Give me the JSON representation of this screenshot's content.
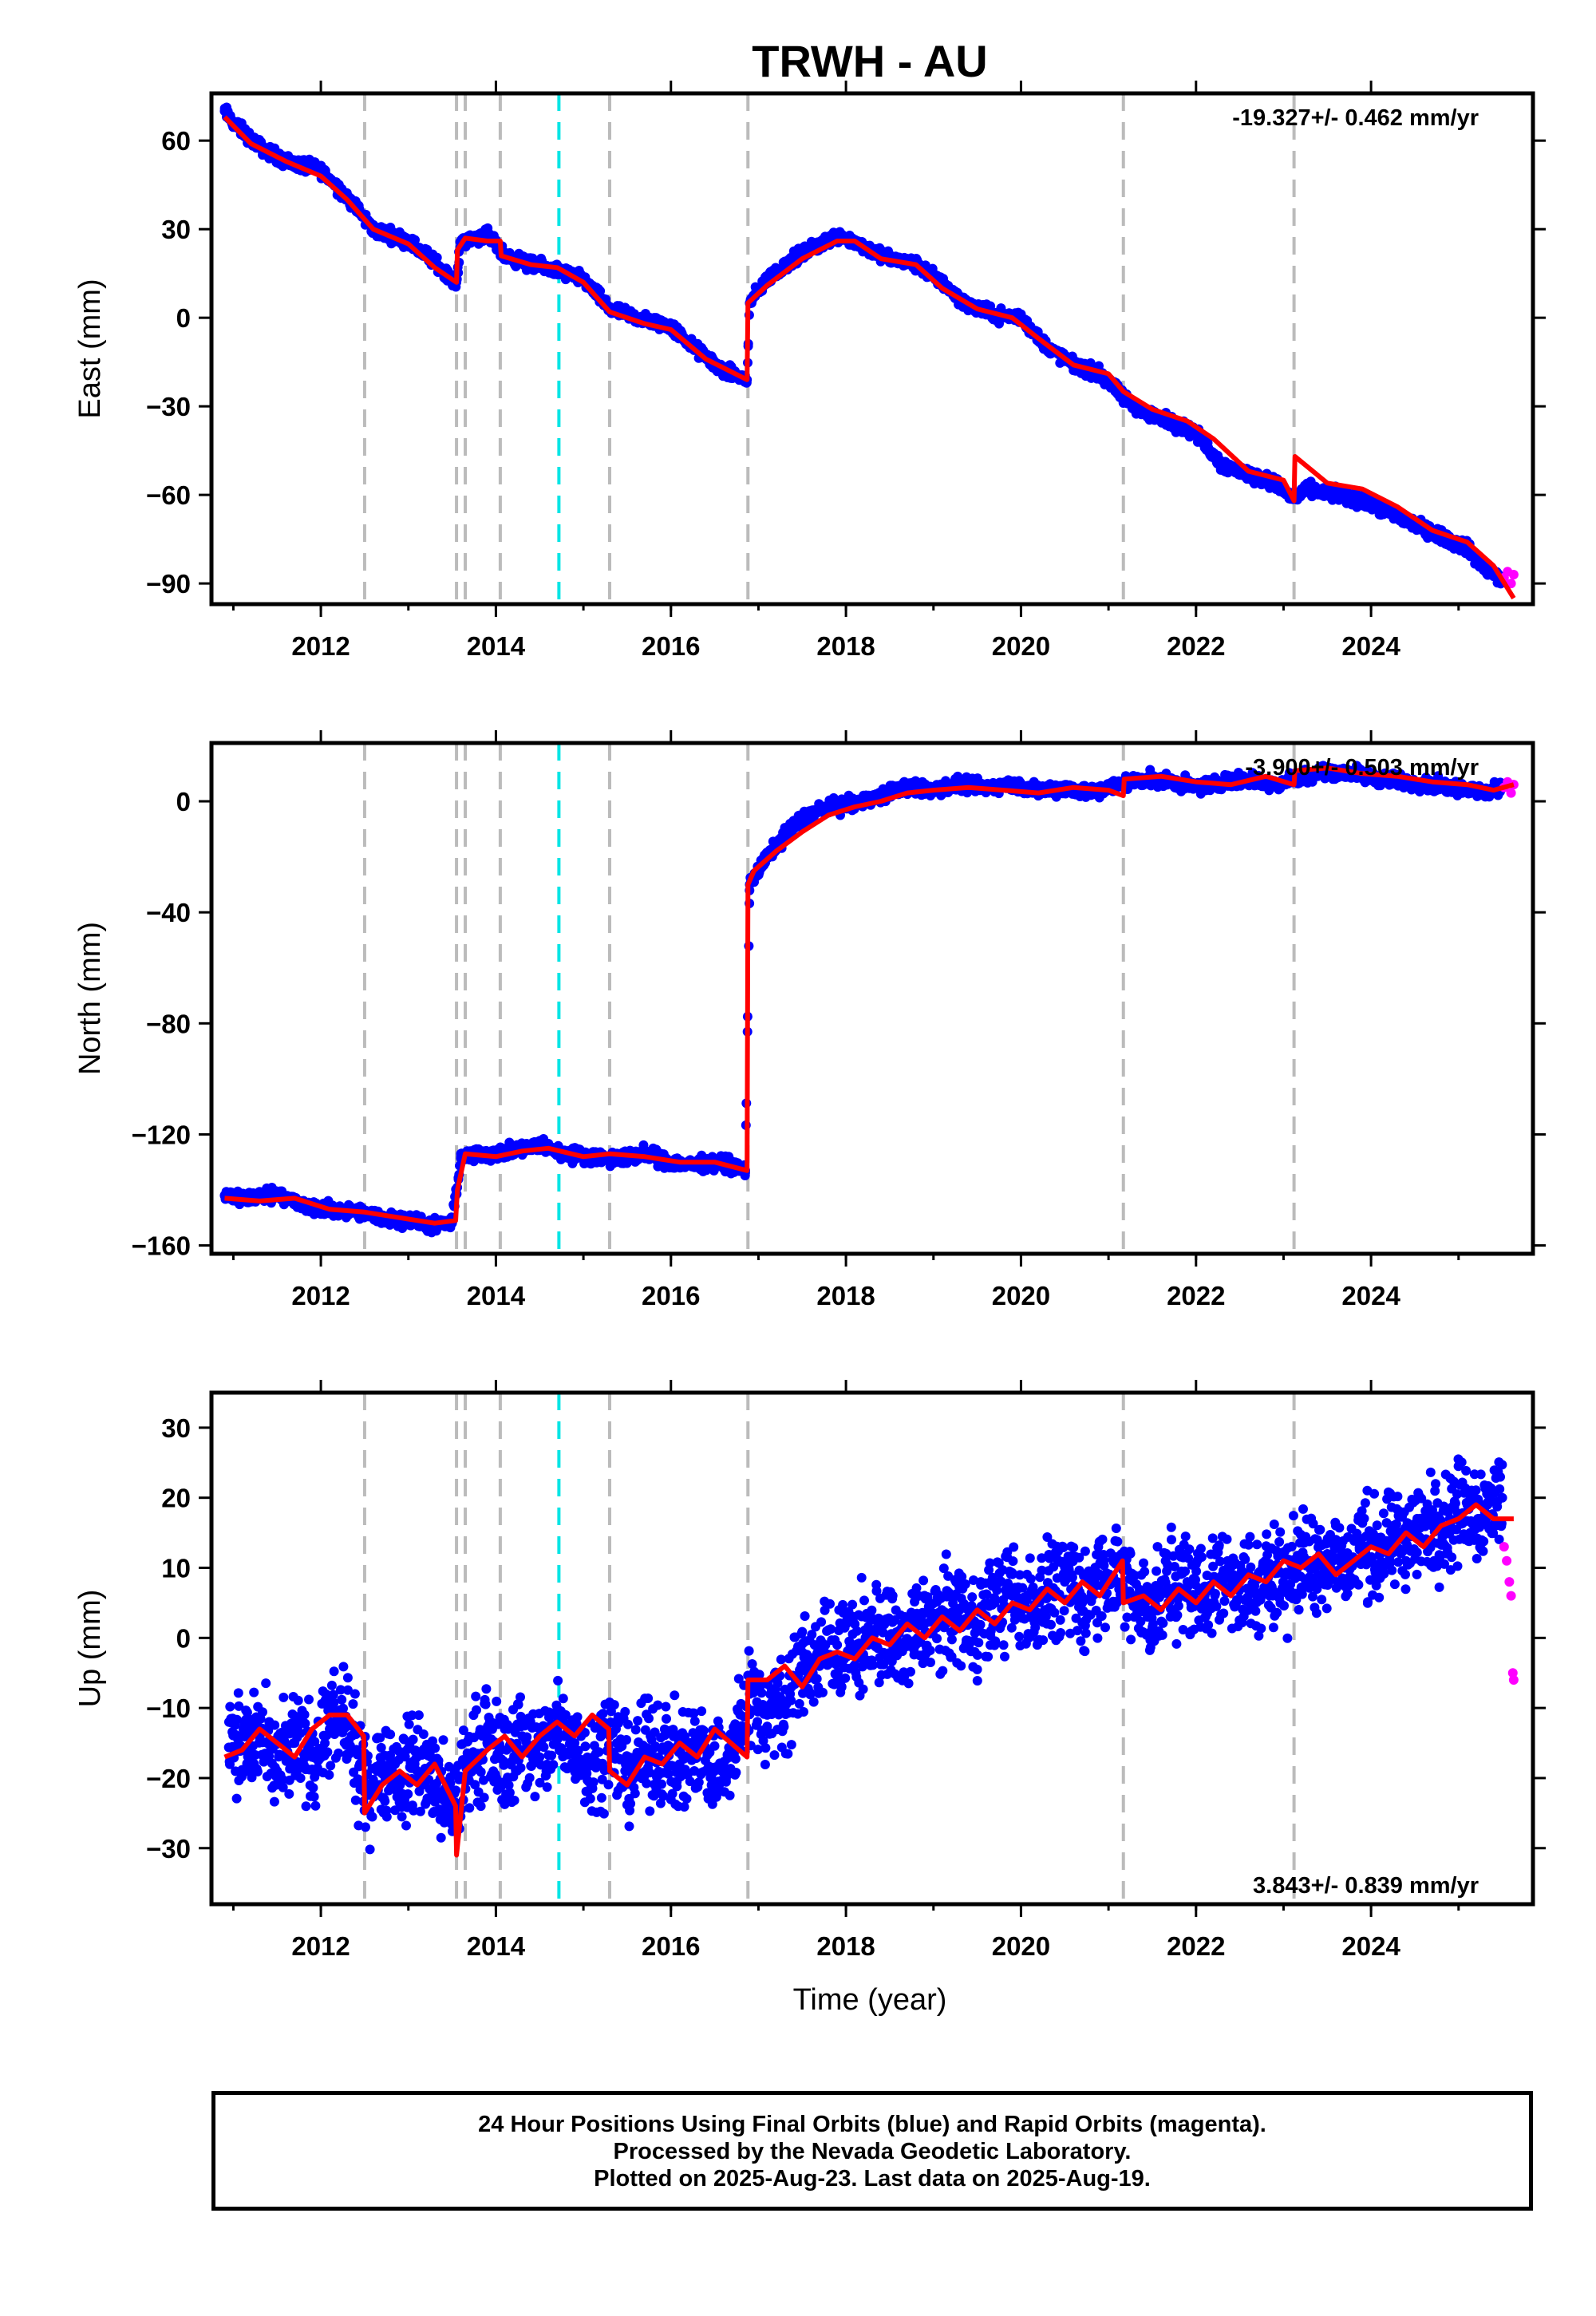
{
  "title": "TRWH - AU",
  "xlabel": "Time (year)",
  "footer": {
    "line1": "24 Hour Positions Using Final Orbits (blue) and Rapid Orbits (magenta).",
    "line2": "Processed by the Nevada Geodetic Laboratory.",
    "line3": "Plotted on 2025-Aug-23. Last data on 2025-Aug-19."
  },
  "colors": {
    "final_orbits": "#0000ff",
    "rapid_orbits": "#ff00ff",
    "model": "#ff0000",
    "event_line": "#bbbbbb",
    "highlight_event_line": "#00e5e5"
  },
  "chart_data": [
    {
      "type": "scatter",
      "panel": "east",
      "ylabel": "East (mm)",
      "rate_text": "-19.327+/- 0.462 mm/yr",
      "rate_position": "top-right",
      "xlim": [
        2010.75,
        2025.85
      ],
      "ylim": [
        -97,
        76
      ],
      "xticks": [
        2012,
        2014,
        2016,
        2018,
        2020,
        2022,
        2024
      ],
      "yticks": [
        -90,
        -60,
        -30,
        0,
        30,
        60
      ],
      "event_lines": [
        2012.5,
        2013.55,
        2013.65,
        2014.05,
        2015.3,
        2016.88,
        2021.17,
        2023.12
      ],
      "highlight_event_lines": [
        2014.72
      ],
      "series": [
        {
          "x": [
            2010.9,
            2011.0,
            2011.3,
            2011.6,
            2012.0,
            2012.3,
            2012.6,
            2013.0,
            2013.3,
            2013.55,
            2013.6,
            2013.9,
            2014.1,
            2014.4,
            2014.7,
            2015.0,
            2015.3,
            2015.6,
            2016.0,
            2016.3,
            2016.6,
            2016.87,
            2016.9,
            2017.1,
            2017.4,
            2017.7,
            2017.95,
            2018.2,
            2018.5,
            2018.8,
            2019.1,
            2019.4,
            2019.7,
            2020.0,
            2020.3,
            2020.6,
            2020.9,
            2021.17,
            2021.4,
            2021.7,
            2022.0,
            2022.3,
            2022.6,
            2022.9,
            2023.1,
            2023.3,
            2023.6,
            2023.9,
            2024.2,
            2024.5,
            2024.8,
            2025.1,
            2025.3,
            2025.5
          ],
          "y": [
            70,
            66,
            58,
            53,
            50,
            41,
            30,
            26,
            19,
            12,
            26,
            28,
            21,
            18,
            16,
            13,
            3,
            0,
            -3,
            -11,
            -18,
            -21,
            5,
            13,
            20,
            25,
            28,
            24,
            20,
            18,
            12,
            4,
            1,
            0,
            -10,
            -16,
            -19,
            -27,
            -32,
            -35,
            -39,
            -50,
            -53,
            -56,
            -61,
            -58,
            -60,
            -62,
            -66,
            -70,
            -74,
            -78,
            -85,
            -89
          ]
        },
        {
          "x": [
            2025.52,
            2025.56,
            2025.6,
            2025.63
          ],
          "y": [
            -88,
            -86,
            -90,
            -87
          ]
        }
      ],
      "model": {
        "x": [
          2010.9,
          2011.2,
          2011.6,
          2012.0,
          2012.3,
          2012.6,
          2013.0,
          2013.3,
          2013.55,
          2013.56,
          2013.65,
          2013.9,
          2014.05,
          2014.06,
          2014.4,
          2014.7,
          2015.0,
          2015.3,
          2015.7,
          2016.0,
          2016.4,
          2016.87,
          2016.88,
          2017.1,
          2017.5,
          2017.9,
          2018.1,
          2018.4,
          2018.8,
          2019.1,
          2019.5,
          2019.9,
          2020.2,
          2020.6,
          2021.0,
          2021.17,
          2021.5,
          2021.9,
          2022.2,
          2022.6,
          2023.0,
          2023.12,
          2023.13,
          2023.5,
          2023.9,
          2024.3,
          2024.7,
          2025.1,
          2025.4,
          2025.63
        ],
        "y": [
          68,
          59,
          53,
          48,
          40,
          30,
          25,
          17,
          12,
          23,
          27,
          26,
          26,
          21,
          18,
          17,
          12,
          2,
          -2,
          -4,
          -14,
          -21,
          5,
          11,
          20,
          26,
          26,
          20,
          18,
          10,
          3,
          0,
          -7,
          -16,
          -19,
          -25,
          -31,
          -35,
          -41,
          -52,
          -55,
          -62,
          -47,
          -56,
          -58,
          -64,
          -72,
          -76,
          -84,
          -95
        ]
      }
    },
    {
      "type": "scatter",
      "panel": "north",
      "ylabel": "North (mm)",
      "rate_text": "-3.900+/- 0.503 mm/yr",
      "rate_position": "top-right",
      "xlim": [
        2010.75,
        2025.85
      ],
      "ylim": [
        -163,
        21
      ],
      "xticks": [
        2012,
        2014,
        2016,
        2018,
        2020,
        2022,
        2024
      ],
      "yticks": [
        -160,
        -120,
        -80,
        -40,
        0
      ],
      "event_lines": [
        2012.5,
        2013.55,
        2013.65,
        2014.05,
        2015.3,
        2016.88,
        2021.17,
        2023.12
      ],
      "highlight_event_lines": [
        2014.72
      ],
      "series": [
        {
          "x": [
            2010.9,
            2011.2,
            2011.5,
            2011.8,
            2012.1,
            2012.4,
            2012.7,
            2013.0,
            2013.3,
            2013.5,
            2013.6,
            2013.9,
            2014.2,
            2014.5,
            2014.8,
            2015.1,
            2015.4,
            2015.7,
            2016.0,
            2016.3,
            2016.6,
            2016.85,
            2016.9,
            2017.1,
            2017.3,
            2017.5,
            2017.8,
            2018.1,
            2018.4,
            2018.7,
            2019.0,
            2019.3,
            2019.6,
            2019.9,
            2020.2,
            2020.5,
            2020.8,
            2021.1,
            2021.4,
            2021.7,
            2022.0,
            2022.3,
            2022.6,
            2022.9,
            2023.2,
            2023.5,
            2023.8,
            2024.1,
            2024.4,
            2024.7,
            2025.0,
            2025.3,
            2025.5
          ],
          "y": [
            -142,
            -143,
            -141,
            -146,
            -147,
            -148,
            -150,
            -151,
            -153,
            -152,
            -128,
            -127,
            -126,
            -124,
            -127,
            -128,
            -129,
            -127,
            -130,
            -131,
            -130,
            -133,
            -30,
            -20,
            -12,
            -6,
            -2,
            -1,
            2,
            5,
            4,
            6,
            5,
            6,
            4,
            5,
            3,
            6,
            8,
            7,
            5,
            7,
            8,
            6,
            9,
            11,
            10,
            8,
            7,
            6,
            5,
            3,
            5
          ]
        },
        {
          "x": [
            2025.52,
            2025.56,
            2025.6,
            2025.63
          ],
          "y": [
            5,
            7,
            3,
            6
          ]
        }
      ],
      "model": {
        "x": [
          2010.9,
          2011.3,
          2011.7,
          2012.1,
          2012.5,
          2012.9,
          2013.3,
          2013.54,
          2013.56,
          2013.65,
          2014.0,
          2014.3,
          2014.6,
          2015.0,
          2015.3,
          2015.7,
          2016.1,
          2016.5,
          2016.87,
          2016.88,
          2016.95,
          2017.2,
          2017.5,
          2017.8,
          2018.1,
          2018.4,
          2018.7,
          2019.0,
          2019.4,
          2019.8,
          2020.2,
          2020.6,
          2021.0,
          2021.17,
          2021.18,
          2021.6,
          2022.0,
          2022.4,
          2022.8,
          2023.12,
          2023.13,
          2023.5,
          2023.9,
          2024.3,
          2024.7,
          2025.1,
          2025.4,
          2025.63
        ],
        "y": [
          -143,
          -144,
          -143,
          -147,
          -148,
          -150,
          -152,
          -151,
          -140,
          -127,
          -128,
          -126,
          -125,
          -128,
          -127,
          -128,
          -130,
          -130,
          -133,
          -30,
          -25,
          -18,
          -11,
          -5,
          -2,
          0,
          3,
          4,
          5,
          4,
          3,
          5,
          4,
          2,
          8,
          9,
          7,
          6,
          9,
          6,
          11,
          12,
          10,
          9,
          7,
          6,
          4,
          6
        ]
      }
    },
    {
      "type": "scatter",
      "panel": "up",
      "ylabel": "Up (mm)",
      "rate_text": "3.843+/- 0.839 mm/yr",
      "rate_position": "bottom-right",
      "xlim": [
        2010.75,
        2025.85
      ],
      "ylim": [
        -38,
        35
      ],
      "xticks": [
        2012,
        2014,
        2016,
        2018,
        2020,
        2022,
        2024
      ],
      "yticks": [
        -30,
        -20,
        -10,
        0,
        10,
        20,
        30
      ],
      "event_lines": [
        2012.5,
        2013.55,
        2013.65,
        2014.05,
        2015.3,
        2016.88,
        2021.17,
        2023.12
      ],
      "highlight_event_lines": [
        2014.72
      ],
      "series": [
        {
          "x": [
            2010.95,
            2011.1,
            2011.3,
            2011.5,
            2011.7,
            2011.9,
            2012.1,
            2012.3,
            2012.5,
            2012.7,
            2012.9,
            2013.1,
            2013.3,
            2013.5,
            2013.7,
            2013.9,
            2014.1,
            2014.3,
            2014.5,
            2014.7,
            2014.9,
            2015.1,
            2015.3,
            2015.5,
            2015.7,
            2015.9,
            2016.1,
            2016.3,
            2016.5,
            2016.7,
            2016.9,
            2017.1,
            2017.3,
            2017.5,
            2017.7,
            2017.9,
            2018.1,
            2018.3,
            2018.5,
            2018.7,
            2018.9,
            2019.1,
            2019.3,
            2019.5,
            2019.7,
            2019.9,
            2020.1,
            2020.3,
            2020.5,
            2020.7,
            2020.9,
            2021.1,
            2021.3,
            2021.5,
            2021.7,
            2021.9,
            2022.1,
            2022.3,
            2022.5,
            2022.7,
            2022.9,
            2023.1,
            2023.3,
            2023.5,
            2023.7,
            2023.9,
            2024.1,
            2024.3,
            2024.5,
            2024.7,
            2024.9,
            2025.1,
            2025.3,
            2025.5
          ],
          "y": [
            -12,
            -16,
            -14,
            -19,
            -15,
            -17,
            -13,
            -12,
            -22,
            -18,
            -20,
            -17,
            -21,
            -25,
            -17,
            -15,
            -18,
            -14,
            -17,
            -13,
            -15,
            -18,
            -14,
            -19,
            -17,
            -16,
            -18,
            -15,
            -19,
            -17,
            -8,
            -11,
            -9,
            -4,
            -3,
            -1,
            -2,
            1,
            0,
            -1,
            2,
            3,
            4,
            2,
            5,
            6,
            4,
            7,
            8,
            5,
            9,
            8,
            6,
            4,
            7,
            8,
            6,
            9,
            8,
            6,
            10,
            9,
            11,
            12,
            10,
            13,
            12,
            14,
            15,
            16,
            17,
            19,
            18,
            20
          ]
        },
        {
          "x": [
            2025.52,
            2025.55,
            2025.58,
            2025.6,
            2025.62,
            2025.63
          ],
          "y": [
            13,
            11,
            8,
            6,
            -5,
            -6
          ]
        }
      ],
      "model": {
        "x": [
          2010.9,
          2011.1,
          2011.3,
          2011.5,
          2011.7,
          2011.9,
          2012.1,
          2012.3,
          2012.49,
          2012.5,
          2012.7,
          2012.9,
          2013.1,
          2013.3,
          2013.54,
          2013.55,
          2013.65,
          2013.9,
          2014.1,
          2014.3,
          2014.5,
          2014.7,
          2014.9,
          2015.1,
          2015.29,
          2015.3,
          2015.5,
          2015.7,
          2015.9,
          2016.1,
          2016.3,
          2016.5,
          2016.87,
          2016.88,
          2017.1,
          2017.3,
          2017.5,
          2017.7,
          2017.9,
          2018.1,
          2018.3,
          2018.5,
          2018.7,
          2018.9,
          2019.1,
          2019.3,
          2019.5,
          2019.7,
          2019.9,
          2020.1,
          2020.3,
          2020.5,
          2020.7,
          2020.9,
          2021.16,
          2021.17,
          2021.4,
          2021.6,
          2021.8,
          2022.0,
          2022.2,
          2022.4,
          2022.6,
          2022.8,
          2023.0,
          2023.2,
          2023.4,
          2023.6,
          2023.8,
          2024.0,
          2024.2,
          2024.4,
          2024.6,
          2024.8,
          2025.0,
          2025.2,
          2025.4,
          2025.63
        ],
        "y": [
          -17,
          -16,
          -13,
          -15,
          -17,
          -13,
          -11,
          -11,
          -14,
          -25,
          -21,
          -19,
          -21,
          -18,
          -24,
          -31,
          -19,
          -16,
          -14,
          -17,
          -14,
          -12,
          -14,
          -11,
          -13,
          -19,
          -21,
          -17,
          -18,
          -15,
          -17,
          -13,
          -17,
          -6,
          -6,
          -4,
          -7,
          -3,
          -2,
          -3,
          0,
          -1,
          2,
          0,
          3,
          1,
          4,
          2,
          5,
          4,
          7,
          5,
          8,
          6,
          11,
          5,
          6,
          4,
          7,
          5,
          8,
          6,
          9,
          8,
          11,
          10,
          12,
          9,
          11,
          13,
          12,
          15,
          13,
          16,
          17,
          19,
          17,
          17
        ]
      }
    }
  ]
}
